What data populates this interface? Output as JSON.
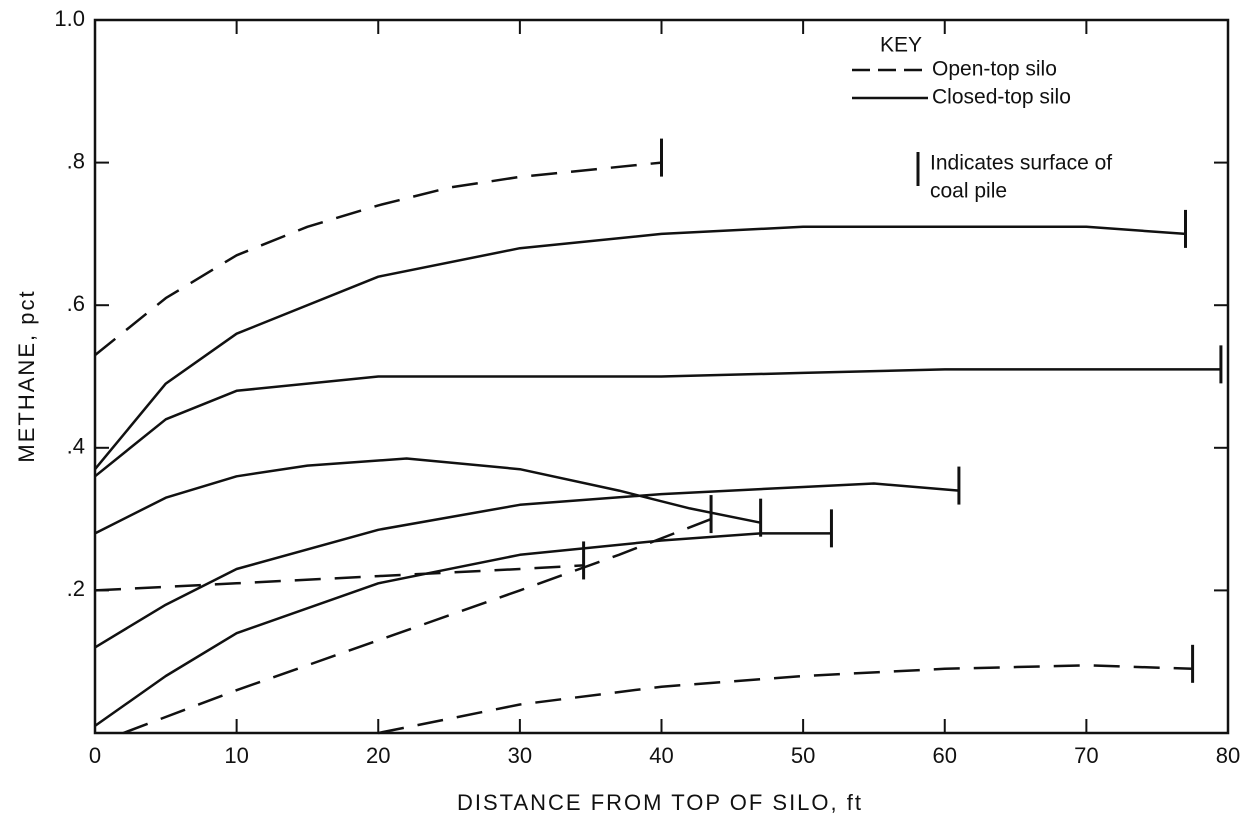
{
  "chart_data": {
    "type": "line",
    "xlabel": "DISTANCE FROM TOP OF SILO, ft",
    "ylabel": "METHANE, pct",
    "xlim": [
      0,
      80
    ],
    "ylim": [
      0,
      1
    ],
    "xticks": [
      0,
      10,
      20,
      30,
      40,
      50,
      60,
      70,
      80
    ],
    "yticks": [
      {
        "value": 0.2,
        "label": ".2"
      },
      {
        "value": 0.4,
        "label": ".4"
      },
      {
        "value": 0.6,
        "label": ".6"
      },
      {
        "value": 0.8,
        "label": ".8"
      },
      {
        "value": 1,
        "label": "1.0"
      }
    ],
    "color": "#111111",
    "legend": {
      "title": "KEY",
      "entries": [
        {
          "label": "Open-top silo",
          "dashed": true
        },
        {
          "label": "Closed-top silo",
          "dashed": false
        }
      ],
      "surface_note": [
        "Indicates surface of",
        "coal pile"
      ]
    },
    "series": [
      {
        "dashed": true,
        "x": [
          0,
          5,
          10,
          15,
          20,
          25,
          30,
          35,
          40
        ],
        "values": [
          0.53,
          0.61,
          0.67,
          0.71,
          0.74,
          0.765,
          0.78,
          0.79,
          0.8
        ]
      },
      {
        "dashed": false,
        "x": [
          0,
          5,
          10,
          20,
          30,
          40,
          50,
          60,
          70,
          77
        ],
        "values": [
          0.37,
          0.49,
          0.56,
          0.64,
          0.68,
          0.7,
          0.71,
          0.71,
          0.71,
          0.7
        ]
      },
      {
        "dashed": false,
        "x": [
          0,
          5,
          10,
          20,
          30,
          40,
          50,
          60,
          70,
          79.5
        ],
        "values": [
          0.36,
          0.44,
          0.48,
          0.5,
          0.5,
          0.5,
          0.505,
          0.51,
          0.51,
          0.51
        ]
      },
      {
        "dashed": false,
        "x": [
          0,
          5,
          10,
          15,
          22,
          30,
          37,
          42,
          47
        ],
        "values": [
          0.28,
          0.33,
          0.36,
          0.375,
          0.385,
          0.37,
          0.34,
          0.315,
          0.295
        ]
      },
      {
        "dashed": false,
        "x": [
          0,
          5,
          10,
          20,
          30,
          40,
          50,
          55,
          61
        ],
        "values": [
          0.12,
          0.18,
          0.23,
          0.285,
          0.32,
          0.335,
          0.345,
          0.35,
          0.34
        ]
      },
      {
        "dashed": true,
        "x": [
          0,
          10,
          20,
          30,
          34.5
        ],
        "values": [
          0.2,
          0.21,
          0.22,
          0.23,
          0.235
        ]
      },
      {
        "dashed": false,
        "x": [
          0,
          5,
          10,
          20,
          30,
          40,
          47,
          52
        ],
        "values": [
          0.01,
          0.08,
          0.14,
          0.21,
          0.25,
          0.27,
          0.28,
          0.28
        ]
      },
      {
        "dashed": true,
        "x": [
          2,
          10,
          20,
          30,
          37,
          43.5
        ],
        "values": [
          0,
          0.06,
          0.13,
          0.2,
          0.25,
          0.3
        ]
      },
      {
        "dashed": true,
        "x": [
          20,
          30,
          40,
          50,
          60,
          70,
          77.5
        ],
        "values": [
          0,
          0.04,
          0.065,
          0.08,
          0.09,
          0.095,
          0.09
        ]
      }
    ]
  }
}
